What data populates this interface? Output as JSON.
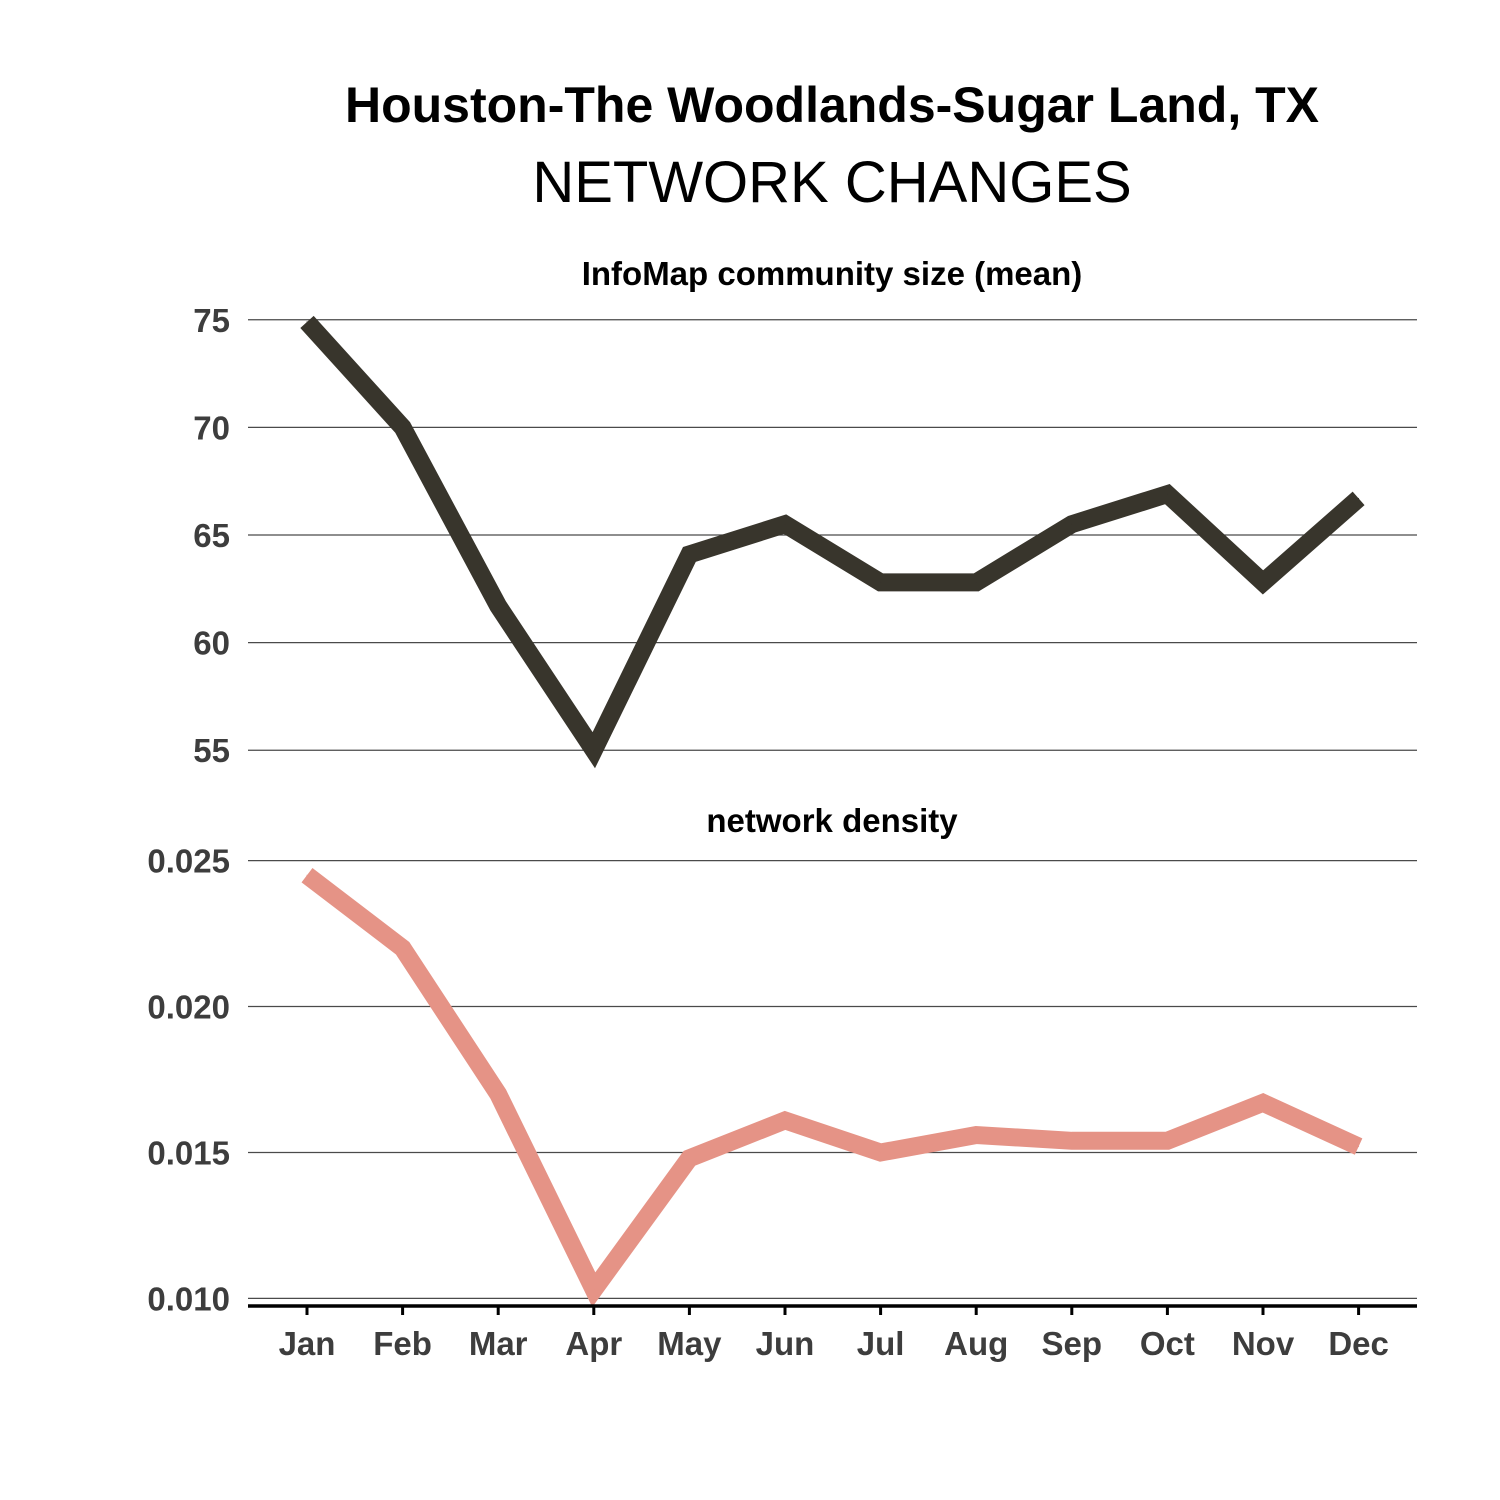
{
  "title": "Houston-The Woodlands-Sugar Land, TX",
  "subtitle": "NETWORK CHANGES",
  "chart_data": [
    {
      "type": "line",
      "title": "InfoMap community size (mean)",
      "categories": [
        "Jan",
        "Feb",
        "Mar",
        "Apr",
        "May",
        "Jun",
        "Jul",
        "Aug",
        "Sep",
        "Oct",
        "Nov",
        "Dec"
      ],
      "values": [
        74.9,
        70.0,
        61.7,
        55.0,
        64.1,
        65.5,
        62.8,
        62.8,
        65.5,
        66.9,
        62.8,
        66.7
      ],
      "ylim": [
        54.5,
        75.5
      ],
      "yticks": [
        55,
        60,
        65,
        70,
        75
      ],
      "ytick_labels": [
        "55",
        "60",
        "65",
        "70",
        "75"
      ],
      "grid": "horizontal",
      "color": "#38352c"
    },
    {
      "type": "line",
      "title": "network density",
      "categories": [
        "Jan",
        "Feb",
        "Mar",
        "Apr",
        "May",
        "Jun",
        "Jul",
        "Aug",
        "Sep",
        "Oct",
        "Nov",
        "Dec"
      ],
      "values": [
        0.0245,
        0.022,
        0.017,
        0.0103,
        0.0148,
        0.0161,
        0.015,
        0.0156,
        0.0154,
        0.0154,
        0.0167,
        0.0152
      ],
      "ylim": [
        0.0095,
        0.0255
      ],
      "yticks": [
        0.01,
        0.015,
        0.02,
        0.025
      ],
      "ytick_labels": [
        "0.010",
        "0.015",
        "0.020",
        "0.025"
      ],
      "grid": "horizontal",
      "color": "#e59386"
    }
  ]
}
